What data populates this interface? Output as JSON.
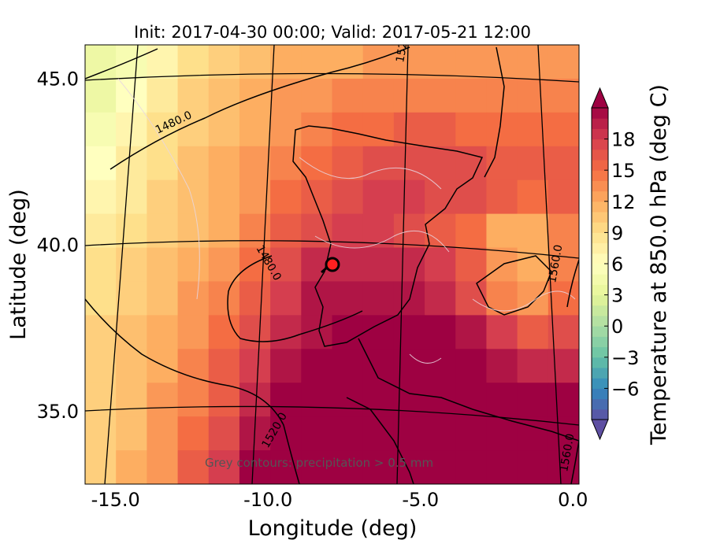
{
  "chart_data": {
    "type": "heatmap",
    "title": "Init: 2017-04-30 00:00; Valid: 2017-05-21 12:00",
    "xlabel": "Longitude (deg)",
    "ylabel": "Latitude (deg)",
    "xlim": [
      -16,
      0.2
    ],
    "ylim": [
      32.8,
      46
    ],
    "x_ticks": [
      "-15.0",
      "-10.0",
      "-5.0",
      "0.0"
    ],
    "y_ticks": [
      "35.0",
      "40.0",
      "45.0"
    ],
    "colorbar": {
      "label": "Temperature at 850.0 hPa (deg C)",
      "range": [
        -9,
        21
      ],
      "ticks": [
        "−6",
        "−3",
        "0",
        "3",
        "6",
        "9",
        "12",
        "15",
        "18"
      ],
      "colormap": "Spectral_r",
      "extend": "both"
    },
    "geopotential_contour_labels": [
      "1480.0",
      "1480.0",
      "1520.0",
      "1520.0",
      "1560.0",
      "1560.0"
    ],
    "annotation": "Grey contours: precipitation > 0.5 mm",
    "marker": {
      "type": "red-circle",
      "lon": -7.7,
      "lat": 39.4
    },
    "temperature_grid": [
      [
        4,
        5,
        7,
        9,
        10,
        11,
        12,
        12,
        12,
        13,
        13,
        13,
        13,
        13,
        13,
        13
      ],
      [
        4,
        6,
        8,
        10,
        11,
        12,
        13,
        13,
        14,
        14,
        14,
        14,
        14,
        14,
        14,
        14
      ],
      [
        5,
        7,
        9,
        10,
        11,
        12,
        13,
        14,
        15,
        15,
        16,
        16,
        15,
        15,
        15,
        15
      ],
      [
        6,
        8,
        9,
        11,
        12,
        13,
        14,
        15,
        16,
        17,
        17,
        17,
        17,
        16,
        16,
        16
      ],
      [
        7,
        8,
        10,
        11,
        12,
        13,
        15,
        16,
        17,
        18,
        18,
        17,
        17,
        16,
        15,
        16
      ],
      [
        8,
        9,
        10,
        11,
        12,
        14,
        16,
        17,
        18,
        18,
        17,
        16,
        15,
        12,
        12,
        14
      ],
      [
        9,
        10,
        11,
        12,
        13,
        15,
        17,
        19,
        19,
        19,
        19,
        18,
        16,
        13,
        12,
        14
      ],
      [
        9,
        10,
        11,
        13,
        14,
        16,
        18,
        20,
        20,
        20,
        20,
        19,
        17,
        14,
        13,
        15
      ],
      [
        10,
        11,
        12,
        13,
        15,
        17,
        19,
        20,
        21,
        21,
        21,
        21,
        20,
        18,
        16,
        17
      ],
      [
        10,
        11,
        12,
        14,
        16,
        18,
        20,
        21,
        21,
        21,
        21,
        21,
        21,
        20,
        19,
        19
      ],
      [
        10,
        11,
        13,
        14,
        16,
        19,
        21,
        21,
        21,
        21,
        21,
        21,
        21,
        21,
        21,
        21
      ],
      [
        10,
        11,
        13,
        15,
        17,
        20,
        21,
        21,
        21,
        21,
        21,
        21,
        21,
        21,
        21,
        21
      ],
      [
        10,
        12,
        13,
        16,
        18,
        21,
        21,
        21,
        21,
        21,
        21,
        21,
        21,
        21,
        21,
        21
      ]
    ]
  }
}
